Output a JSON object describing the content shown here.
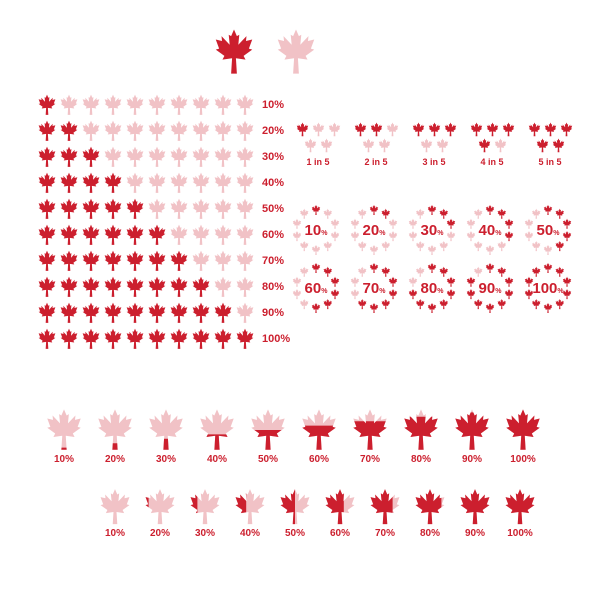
{
  "colors": {
    "active": "#cc1f2e",
    "inactive": "#f1c2c6",
    "background": "#ffffff"
  },
  "legend": {
    "active_leaf": true,
    "inactive_leaf": true
  },
  "grid": {
    "rows": 10,
    "cols": 10,
    "row_labels": [
      "10%",
      "20%",
      "30%",
      "40%",
      "50%",
      "60%",
      "70%",
      "80%",
      "90%",
      "100%"
    ]
  },
  "ratios": [
    {
      "label": "1 in 5",
      "filled": 1,
      "total": 5
    },
    {
      "label": "2 in 5",
      "filled": 2,
      "total": 5
    },
    {
      "label": "3 in 5",
      "filled": 3,
      "total": 5
    },
    {
      "label": "4 in 5",
      "filled": 4,
      "total": 5
    },
    {
      "label": "5 in 5",
      "filled": 5,
      "total": 5
    }
  ],
  "circles": [
    {
      "value": "10",
      "pct": 10
    },
    {
      "value": "20",
      "pct": 20
    },
    {
      "value": "30",
      "pct": 30
    },
    {
      "value": "40",
      "pct": 40
    },
    {
      "value": "50",
      "pct": 50
    },
    {
      "value": "60",
      "pct": 60
    },
    {
      "value": "70",
      "pct": 70
    },
    {
      "value": "80",
      "pct": 80
    },
    {
      "value": "90",
      "pct": 90
    },
    {
      "value": "100",
      "pct": 100
    }
  ],
  "fill_row_a": [
    {
      "label": "10%",
      "pct": 10
    },
    {
      "label": "20%",
      "pct": 20
    },
    {
      "label": "30%",
      "pct": 30
    },
    {
      "label": "40%",
      "pct": 40
    },
    {
      "label": "50%",
      "pct": 50
    },
    {
      "label": "60%",
      "pct": 60
    },
    {
      "label": "70%",
      "pct": 70
    },
    {
      "label": "80%",
      "pct": 80
    },
    {
      "label": "90%",
      "pct": 90
    },
    {
      "label": "100%",
      "pct": 100
    }
  ],
  "fill_row_b": [
    {
      "label": "10%",
      "pct": 10
    },
    {
      "label": "20%",
      "pct": 20
    },
    {
      "label": "30%",
      "pct": 30
    },
    {
      "label": "40%",
      "pct": 40
    },
    {
      "label": "50%",
      "pct": 50
    },
    {
      "label": "60%",
      "pct": 60
    },
    {
      "label": "70%",
      "pct": 70
    },
    {
      "label": "80%",
      "pct": 80
    },
    {
      "label": "90%",
      "pct": 90
    },
    {
      "label": "100%",
      "pct": 100
    }
  ]
}
